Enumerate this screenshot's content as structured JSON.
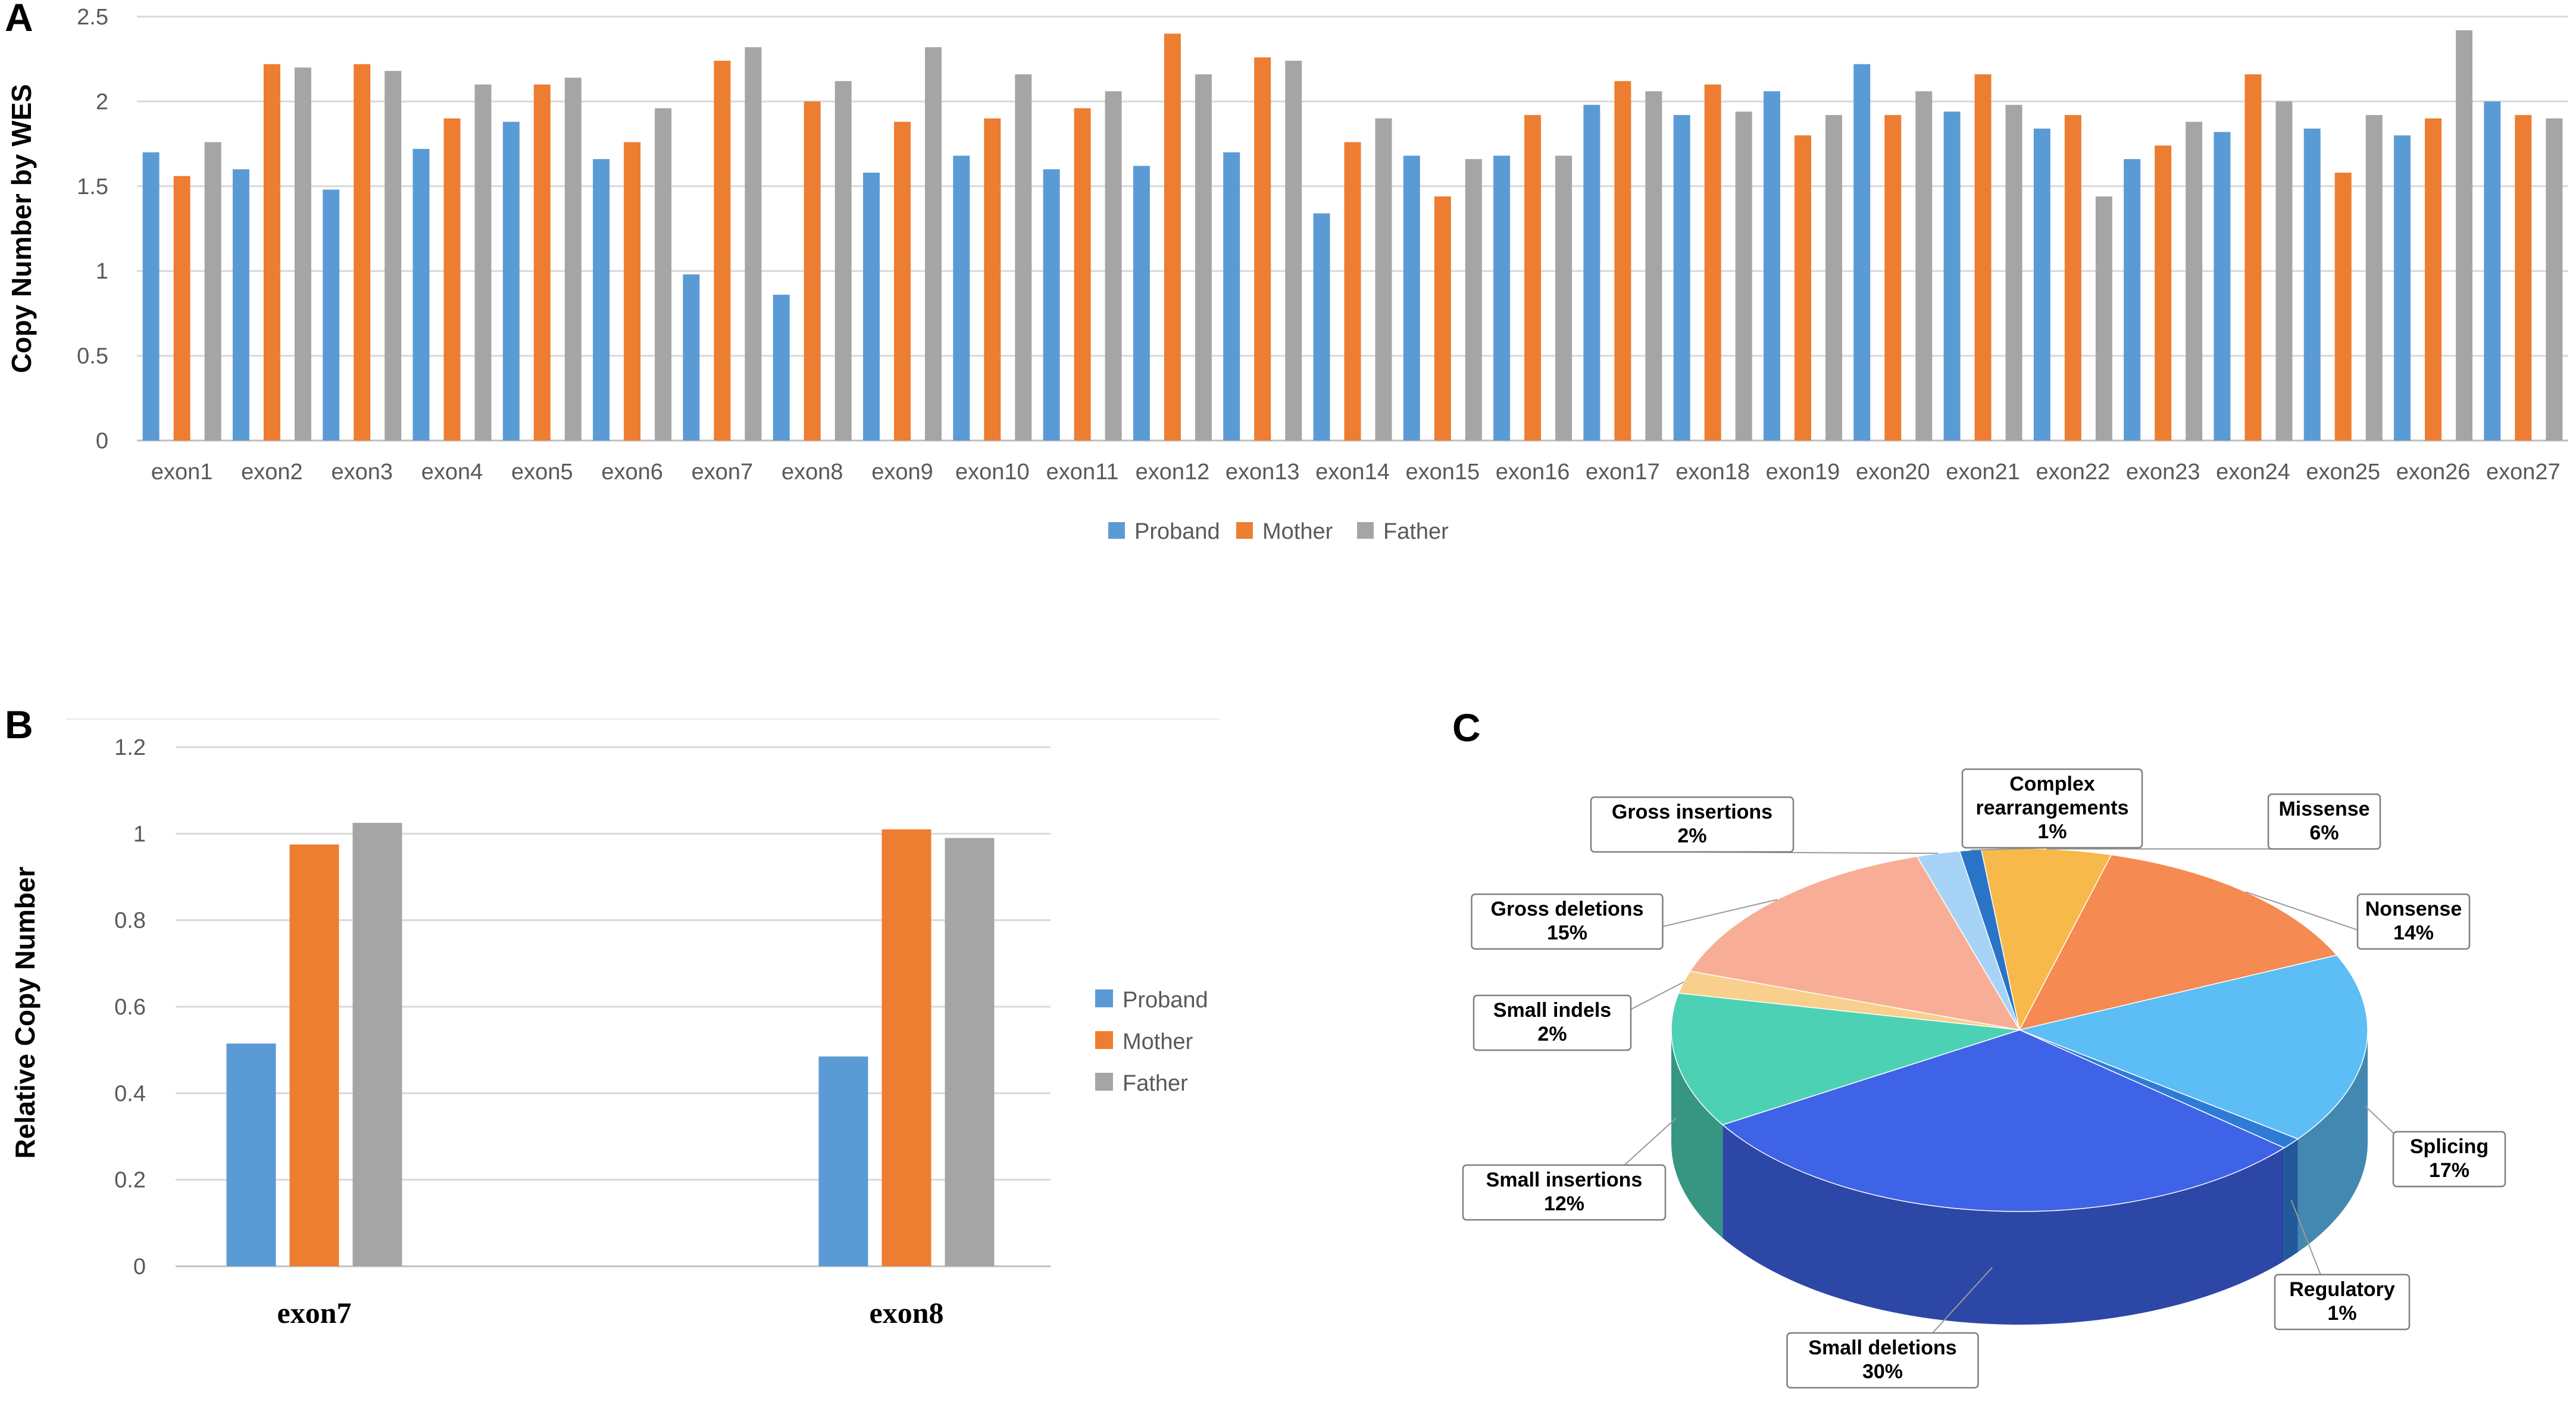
{
  "panels": {
    "a": "A",
    "b": "B",
    "c": "C"
  },
  "colors": {
    "proband": "#5B9BD5",
    "mother": "#ED7D31",
    "father": "#A5A5A5"
  },
  "chart_data": [
    {
      "id": "A",
      "type": "bar",
      "title": "",
      "xlabel": "",
      "ylabel": "Copy Number by WES",
      "ylim": [
        0,
        2.5
      ],
      "yticks": [
        "0",
        "0.5",
        "1",
        "1.5",
        "2",
        "2.5"
      ],
      "categories": [
        "exon1",
        "exon2",
        "exon3",
        "exon4",
        "exon5",
        "exon6",
        "exon7",
        "exon8",
        "exon9",
        "exon10",
        "exon11",
        "exon12",
        "exon13",
        "exon14",
        "exon15",
        "exon16",
        "exon17",
        "exon18",
        "exon19",
        "exon20",
        "exon21",
        "exon22",
        "exon23",
        "exon24",
        "exon25",
        "exon26",
        "exon27"
      ],
      "series": [
        {
          "name": "Proband",
          "values": [
            1.7,
            1.6,
            1.48,
            1.72,
            1.88,
            1.66,
            0.98,
            0.86,
            1.58,
            1.68,
            1.6,
            1.62,
            1.7,
            1.34,
            1.68,
            1.68,
            1.98,
            1.92,
            2.06,
            2.22,
            1.94,
            1.84,
            1.66,
            1.82,
            1.84,
            1.8,
            2.0
          ]
        },
        {
          "name": "Mother",
          "values": [
            1.56,
            2.22,
            2.22,
            1.9,
            2.1,
            1.76,
            2.24,
            2.0,
            1.88,
            1.9,
            1.96,
            2.4,
            2.26,
            1.76,
            1.44,
            1.92,
            2.12,
            2.1,
            1.8,
            1.92,
            2.16,
            1.92,
            1.74,
            2.16,
            1.58,
            1.9,
            1.92
          ]
        },
        {
          "name": "Father",
          "values": [
            1.76,
            2.2,
            2.18,
            2.1,
            2.14,
            1.96,
            2.32,
            2.12,
            2.32,
            2.16,
            2.06,
            2.16,
            2.24,
            1.9,
            1.66,
            1.68,
            2.06,
            1.94,
            1.92,
            2.06,
            1.98,
            1.44,
            1.88,
            2.0,
            1.92,
            2.42,
            1.9
          ]
        }
      ],
      "legend": [
        "Proband",
        "Mother",
        "Father"
      ],
      "legend_position": "bottom"
    },
    {
      "id": "B",
      "type": "bar",
      "title": "",
      "xlabel": "",
      "ylabel": "Relative Copy Number",
      "ylim": [
        0,
        1.2
      ],
      "yticks": [
        "0",
        "0.2",
        "0.4",
        "0.6",
        "0.8",
        "1",
        "1.2"
      ],
      "categories": [
        "exon7",
        "exon8"
      ],
      "series": [
        {
          "name": "Proband",
          "values": [
            0.515,
            0.485
          ]
        },
        {
          "name": "Mother",
          "values": [
            0.975,
            1.01
          ]
        },
        {
          "name": "Father",
          "values": [
            1.025,
            0.99
          ]
        }
      ],
      "legend": [
        "Proband",
        "Mother",
        "Father"
      ],
      "legend_position": "right"
    },
    {
      "id": "C",
      "type": "pie",
      "title": "",
      "slices": [
        {
          "label": "Missense",
          "pct": "6%",
          "value": 6,
          "color": "#F6B94A"
        },
        {
          "label": "Nonsense",
          "pct": "14%",
          "value": 14,
          "color": "#F58A52"
        },
        {
          "label": "Splicing",
          "pct": "17%",
          "value": 17,
          "color": "#5DBDF5"
        },
        {
          "label": "Regulatory",
          "pct": "1%",
          "value": 1,
          "color": "#2E7BD6"
        },
        {
          "label": "Small deletions",
          "pct": "30%",
          "value": 30,
          "color": "#3F63E6"
        },
        {
          "label": "Small insertions",
          "pct": "12%",
          "value": 12,
          "color": "#4DD1B4"
        },
        {
          "label": "Small indels",
          "pct": "2%",
          "value": 2,
          "color": "#F8CF8C"
        },
        {
          "label": "Gross deletions",
          "pct": "15%",
          "value": 15,
          "color": "#F8AE96"
        },
        {
          "label": "Gross insertions",
          "pct": "2%",
          "value": 2,
          "color": "#A7D3F7"
        },
        {
          "label": "Complex rearrangements",
          "label_lines": [
            "Complex",
            "rearrangements"
          ],
          "pct": "1%",
          "value": 1,
          "color": "#2A74C8"
        }
      ]
    }
  ]
}
